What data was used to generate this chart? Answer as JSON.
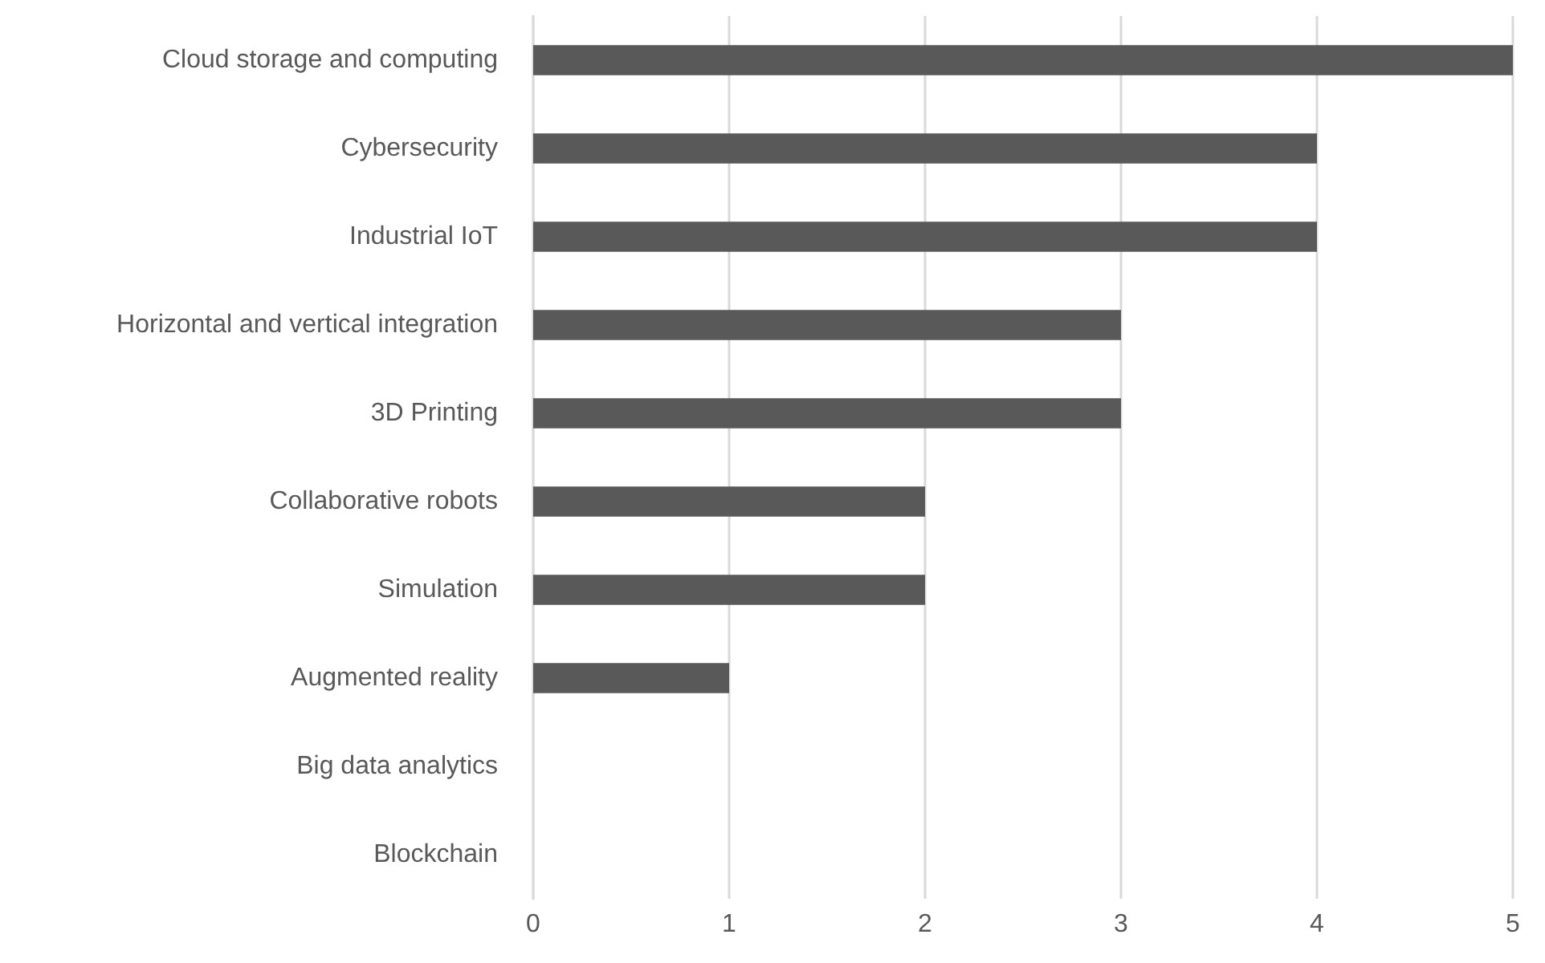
{
  "chart_data": {
    "type": "bar",
    "orientation": "horizontal",
    "categories": [
      "Cloud storage and computing",
      "Cybersecurity",
      "Industrial IoT",
      "Horizontal and vertical integration",
      "3D Printing",
      "Collaborative robots",
      "Simulation",
      "Augmented reality",
      "Big data analytics",
      "Blockchain"
    ],
    "values": [
      5,
      4,
      4,
      3,
      3,
      2,
      2,
      1,
      0,
      0
    ],
    "color": "#595959",
    "xlim": [
      0,
      5
    ],
    "xticks": [
      0,
      1,
      2,
      3,
      4,
      5
    ],
    "grid": "x"
  }
}
